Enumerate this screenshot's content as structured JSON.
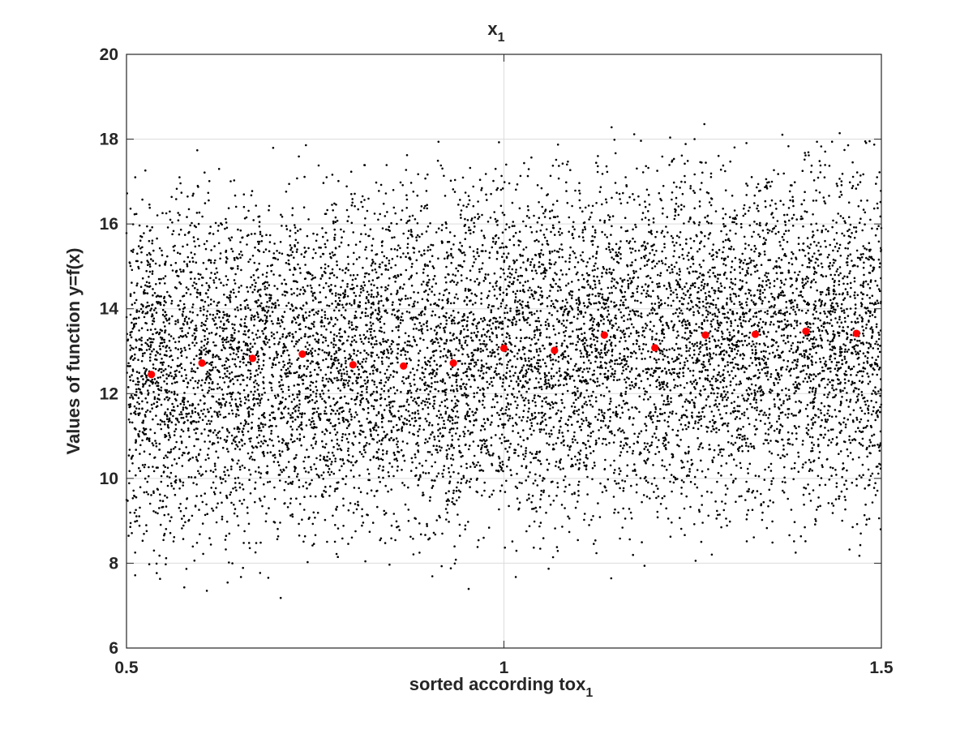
{
  "chart_data": {
    "type": "scatter",
    "title": "x",
    "title_subscript": "1",
    "xlabel": "sorted according tox",
    "xlabel_subscript": "1",
    "ylabel": "Values of function y=f(x)",
    "xlim": [
      0.5,
      1.5
    ],
    "ylim": [
      6,
      20
    ],
    "xticks": [
      0.5,
      1,
      1.5
    ],
    "xtick_labels": [
      "0.5",
      "1",
      "1.5"
    ],
    "yticks": [
      6,
      8,
      10,
      12,
      14,
      16,
      18,
      20
    ],
    "ytick_labels": [
      "6",
      "8",
      "10",
      "12",
      "14",
      "16",
      "18",
      "20"
    ],
    "grid": true,
    "colors": {
      "samples": "#000000",
      "means": "#ff0000",
      "grid": "#dcdcdc",
      "axes": "#262626"
    },
    "series": [
      {
        "kind": "scatter-cloud",
        "point_count": 10000,
        "x_range": [
          0.5,
          1.5
        ],
        "y_lower_bound": [
          [
            0.5,
            6.8
          ],
          [
            1.0,
            7.3
          ],
          [
            1.5,
            7.6
          ]
        ],
        "y_upper_bound": [
          [
            0.5,
            18.1
          ],
          [
            1.0,
            18.6
          ],
          [
            1.5,
            19.2
          ]
        ]
      },
      {
        "kind": "bin-means",
        "x": [
          0.533,
          0.6,
          0.667,
          0.733,
          0.8,
          0.867,
          0.933,
          1.0,
          1.067,
          1.133,
          1.2,
          1.267,
          1.333,
          1.4,
          1.467
        ],
        "y": [
          12.45,
          12.72,
          12.83,
          12.93,
          12.68,
          12.65,
          12.72,
          13.07,
          13.02,
          13.38,
          13.08,
          13.38,
          13.4,
          13.47,
          13.42
        ]
      }
    ]
  }
}
